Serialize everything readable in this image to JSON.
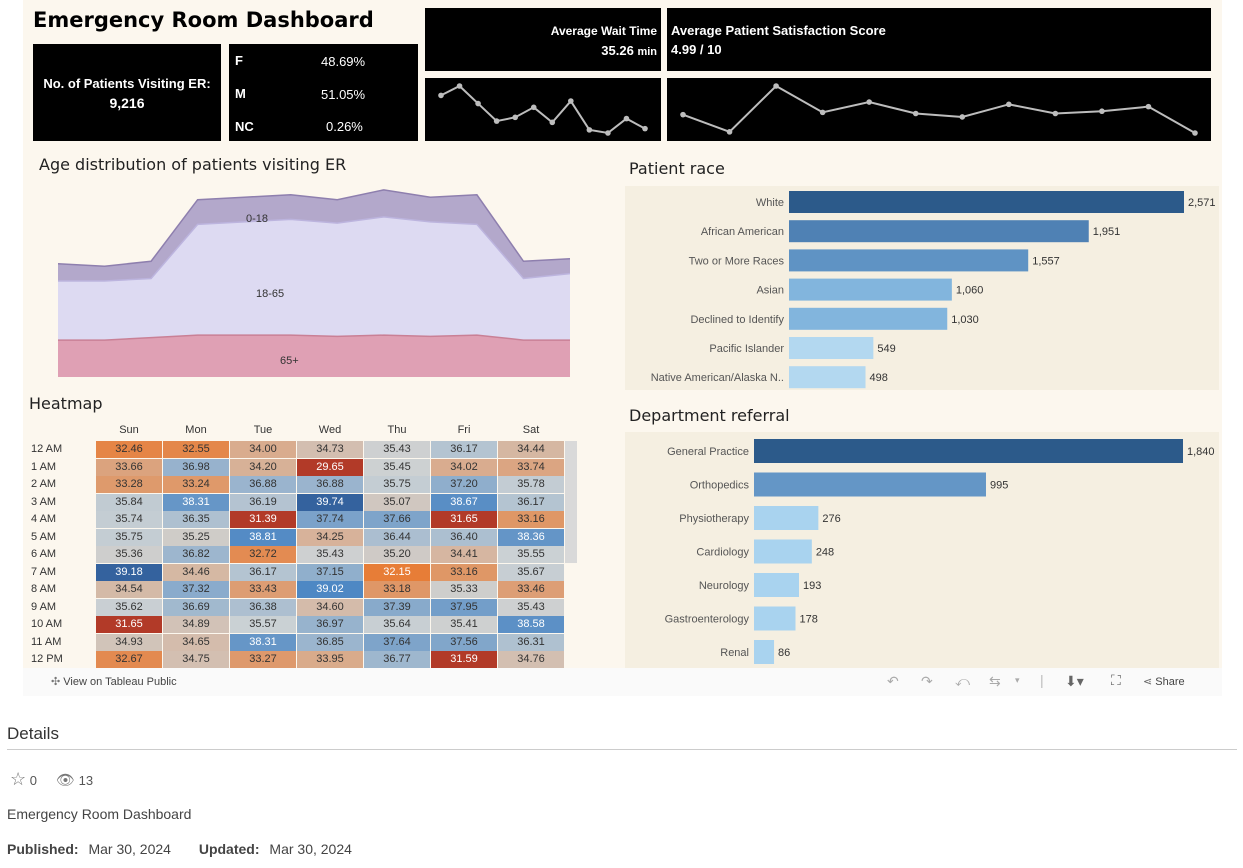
{
  "dashboard": {
    "title": "Emergency Room Dashboard",
    "patients_label": "No. of Patients Visiting ER:",
    "patients_value": "9,216",
    "gender": [
      {
        "code": "F",
        "pct": "48.69%"
      },
      {
        "code": "M",
        "pct": "51.05%"
      },
      {
        "code": "NC",
        "pct": "0.26%"
      }
    ],
    "wait_label": "Average Wait Time",
    "wait_value": "35.26",
    "wait_unit": "min",
    "satisfaction_label": "Average Patient Satisfaction Score",
    "satisfaction_value": "4.99 / 10"
  },
  "sparkline_wait": {
    "values": [
      36.5,
      38.0,
      35.2,
      32.4,
      33.0,
      34.6,
      32.2,
      35.6,
      31.0,
      30.5,
      32.8,
      31.2
    ]
  },
  "sparkline_satisfaction": {
    "values": [
      4.95,
      4.8,
      5.2,
      4.97,
      5.06,
      4.96,
      4.93,
      5.04,
      4.96,
      4.98,
      5.02,
      4.79
    ]
  },
  "age_chart": {
    "title": "Age distribution of patients visiting ER",
    "type": "area",
    "labels": [
      "0-18",
      "18-65",
      "65+"
    ],
    "series": [
      {
        "name": "65+",
        "values": [
          150,
          150,
          160,
          170,
          170,
          170,
          165,
          170,
          165,
          170,
          150,
          150
        ]
      },
      {
        "name": "18-65",
        "values": [
          390,
          390,
          400,
          620,
          630,
          640,
          625,
          650,
          630,
          620,
          400,
          420
        ]
      },
      {
        "name": "0-18",
        "values": [
          460,
          450,
          470,
          720,
          730,
          740,
          720,
          760,
          730,
          740,
          470,
          480
        ]
      }
    ],
    "ymax": 800
  },
  "race_chart": {
    "title": "Patient race",
    "type": "bar",
    "categories": [
      "White",
      "African American",
      "Two or More Races",
      "Asian",
      "Declined to Identify",
      "Pacific Islander",
      "Native American/Alaska N.."
    ],
    "values": [
      2571,
      1951,
      1557,
      1060,
      1030,
      549,
      498
    ],
    "value_labels": [
      "2,571",
      "1,951",
      "1,557",
      "1,060",
      "1,030",
      "549",
      "498"
    ],
    "colors": [
      "#2c5a8a",
      "#4f81b4",
      "#5f93c4",
      "#82b5dd",
      "#82b5dd",
      "#b3d8f0",
      "#b3d8f0"
    ]
  },
  "dept_chart": {
    "title": "Department referral",
    "type": "bar",
    "categories": [
      "General Practice",
      "Orthopedics",
      "Physiotherapy",
      "Cardiology",
      "Neurology",
      "Gastroenterology",
      "Renal"
    ],
    "values": [
      1840,
      995,
      276,
      248,
      193,
      178,
      86
    ],
    "value_labels": [
      "1,840",
      "995",
      "276",
      "248",
      "193",
      "178",
      "86"
    ],
    "colors": [
      "#2c5a8a",
      "#6496c6",
      "#a9d3ef",
      "#a9d3ef",
      "#a9d3ef",
      "#a9d3ef",
      "#a9d3ef"
    ]
  },
  "heatmap": {
    "title": "Heatmap",
    "type": "heatmap",
    "days": [
      "Sun",
      "Mon",
      "Tue",
      "Wed",
      "Thu",
      "Fri",
      "Sat"
    ],
    "hours": [
      "12 AM",
      "1 AM",
      "2 AM",
      "3 AM",
      "4 AM",
      "5 AM",
      "6 AM",
      "7 AM",
      "8 AM",
      "9 AM",
      "10 AM",
      "11 AM",
      "12 PM"
    ],
    "values": [
      [
        "32.46",
        "32.55",
        "34.00",
        "34.73",
        "35.43",
        "36.17",
        "34.44"
      ],
      [
        "33.66",
        "36.98",
        "34.20",
        "29.65",
        "35.45",
        "34.02",
        "33.74"
      ],
      [
        "33.28",
        "33.24",
        "36.88",
        "36.88",
        "35.75",
        "37.20",
        "35.78"
      ],
      [
        "35.84",
        "38.31",
        "36.19",
        "39.74",
        "35.07",
        "38.67",
        "36.17"
      ],
      [
        "35.74",
        "36.35",
        "31.39",
        "37.74",
        "37.66",
        "31.65",
        "33.16"
      ],
      [
        "35.75",
        "35.25",
        "38.81",
        "34.25",
        "36.44",
        "36.40",
        "38.36"
      ],
      [
        "35.36",
        "36.82",
        "32.72",
        "35.43",
        "35.20",
        "34.41",
        "35.55"
      ],
      [
        "39.18",
        "34.46",
        "36.17",
        "37.15",
        "32.15",
        "33.16",
        "35.67"
      ],
      [
        "34.54",
        "37.32",
        "33.43",
        "39.02",
        "33.18",
        "35.33",
        "33.46"
      ],
      [
        "35.62",
        "36.69",
        "36.38",
        "34.60",
        "37.39",
        "37.95",
        "35.43"
      ],
      [
        "31.65",
        "34.89",
        "35.57",
        "36.97",
        "35.64",
        "35.41",
        "38.58"
      ],
      [
        "34.93",
        "34.65",
        "38.31",
        "36.85",
        "37.64",
        "37.56",
        "36.31"
      ],
      [
        "32.67",
        "34.75",
        "33.27",
        "33.95",
        "36.77",
        "31.59",
        "34.76"
      ]
    ]
  },
  "toolbar": {
    "view_label": "View on Tableau Public",
    "share_label": "Share"
  },
  "details": {
    "heading": "Details",
    "stars": "0",
    "views": "13",
    "name": "Emergency Room Dashboard",
    "published_label": "Published:",
    "published_date": "Mar 30, 2024",
    "updated_label": "Updated:",
    "updated_date": "Mar 30, 2024"
  }
}
